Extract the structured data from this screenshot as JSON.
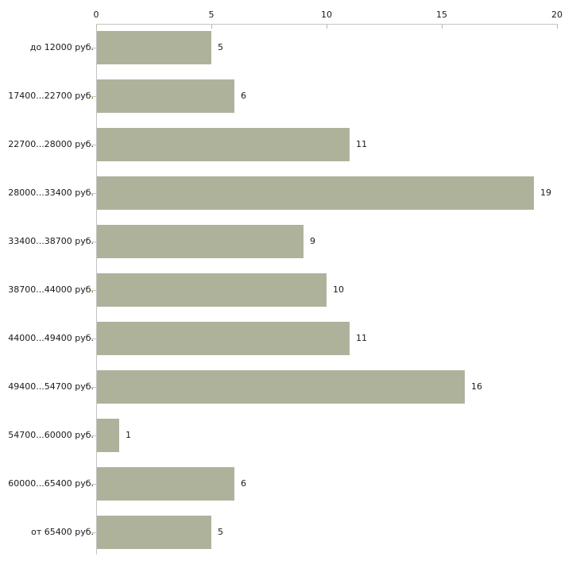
{
  "chart_data": {
    "type": "bar",
    "orientation": "horizontal",
    "title": "",
    "xlabel": "",
    "ylabel": "",
    "categories": [
      "до 12000 руб.",
      "17400...22700 руб.",
      "22700...28000 руб.",
      "28000...33400 руб.",
      "33400...38700 руб.",
      "38700...44000 руб.",
      "44000...49400 руб.",
      "49400...54700 руб.",
      "54700...60000 руб.",
      "60000...65400 руб.",
      "от 65400 руб."
    ],
    "values": [
      5,
      6,
      11,
      19,
      9,
      10,
      11,
      16,
      1,
      6,
      5
    ],
    "xlim": [
      0,
      20
    ],
    "x_ticks": [
      0,
      5,
      10,
      15,
      20
    ],
    "axis_position": "top",
    "value_labels_shown": true,
    "grid": false,
    "legend": "none",
    "colors": {
      "bar": "#aeb29b",
      "axis_line": "#c3c3c3",
      "tick": "#b9bc8f",
      "category_tick": "#c6c9a4",
      "text": "#1a1a1a",
      "background": "#ffffff"
    }
  }
}
